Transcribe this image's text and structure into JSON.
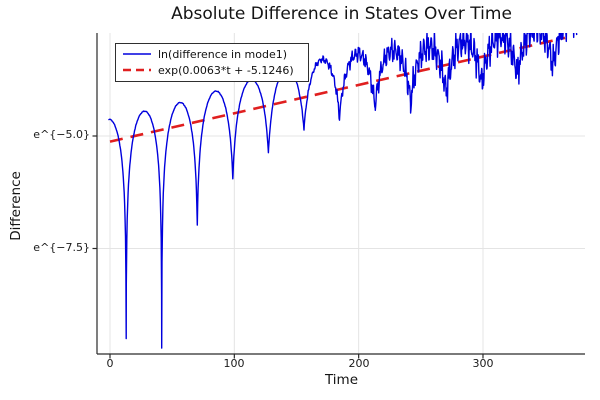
{
  "chart_data": {
    "type": "line",
    "title": "Absolute Difference in States Over Time",
    "xlabel": "Time",
    "ylabel": "Difference",
    "x_ticks": [
      {
        "value": 0,
        "label": "0"
      },
      {
        "value": 100,
        "label": "100"
      },
      {
        "value": 200,
        "label": "200"
      },
      {
        "value": 300,
        "label": "300"
      }
    ],
    "y_ticks": [
      {
        "ln": -5.0,
        "label": "e^{−5.0}"
      },
      {
        "ln": -7.5,
        "label": "e^{−7.5}"
      }
    ],
    "xlim": [
      -9.7,
      382
    ],
    "ylim_ln": [
      -9.84,
      -2.71
    ],
    "grid": true,
    "legend_position": "top-left",
    "grid_color": "#e4e4e4",
    "axis_color": "#2a2a2a",
    "text_color": "#111111",
    "series": [
      {
        "name": "ln(difference in mode1)",
        "type": "line",
        "color": "#0000dd",
        "style": "solid",
        "width": 1.4,
        "model": {
          "description": "ln|difference| ≈ fit(t) + offset(t) + ln|sin(pi*(t-t0)/P)| with cusp floors and noise growing over time",
          "first_cusp_t": 13,
          "cusp_period": 28.6,
          "envelope_offset_start": 0.5,
          "envelope_offset_end": 0.0,
          "offset_ramp_t0": 180,
          "offset_ramp_t1": 320,
          "cusp_depths_below_fit": [
            4.45,
            4.85,
            2.3,
            1.45,
            1.05,
            0.7,
            0.58,
            0.5,
            0.55,
            0.5,
            0.5,
            0.45,
            0.45
          ],
          "noise": {
            "amp_start": 0.01,
            "amp_end": 0.42,
            "ramp_t0": 150,
            "ramp_t1": 260,
            "bias": -0.3,
            "components": [
              [
                0.5,
                2.17,
                0.5
              ],
              [
                0.35,
                5.13,
                1.3
              ],
              [
                0.25,
                11.7,
                2.1
              ]
            ]
          },
          "t_start": -1.2,
          "t_end": 375.6,
          "sample_dt": 0.35
        }
      },
      {
        "name": "exp(0.0063*t + -5.1246)",
        "type": "line",
        "color": "#e01f1f",
        "style": "dashed",
        "width": 2.6,
        "slope": 0.0063,
        "intercept": -5.1246,
        "t_start": 0,
        "t_end": 366
      }
    ]
  }
}
